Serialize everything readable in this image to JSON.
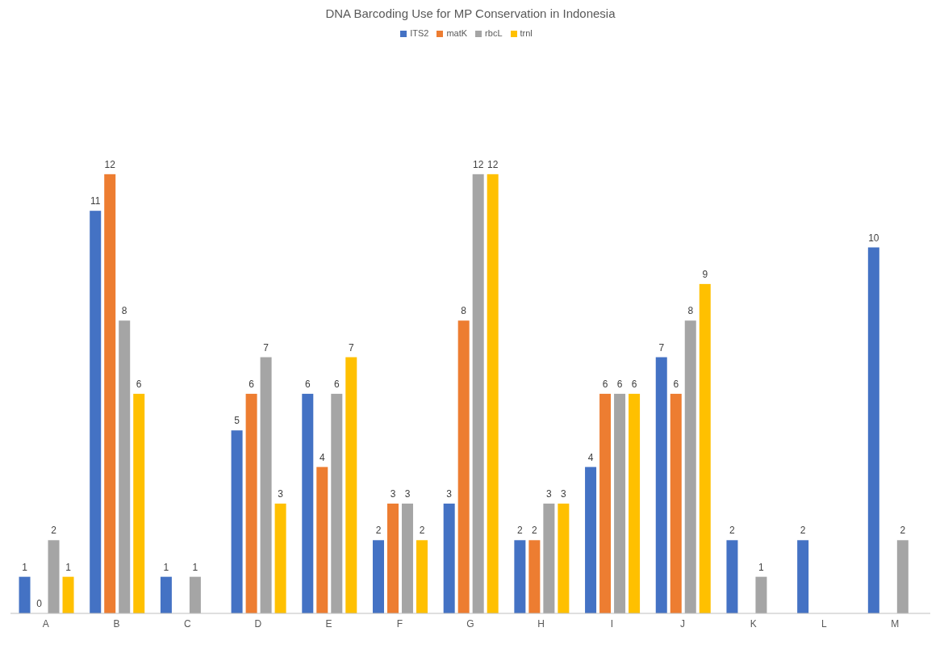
{
  "chart_data": {
    "type": "bar",
    "title": "DNA Barcoding Use for MP Conservation in Indonesia",
    "categories": [
      "A",
      "B",
      "C",
      "D",
      "E",
      "F",
      "G",
      "H",
      "I",
      "J",
      "K",
      "L",
      "M"
    ],
    "series": [
      {
        "name": "ITS2",
        "color": "#4472c4",
        "values": [
          1,
          11,
          1,
          5,
          6,
          2,
          3,
          2,
          4,
          7,
          2,
          2,
          10
        ]
      },
      {
        "name": "matK",
        "color": "#ed7d31",
        "values": [
          0,
          12,
          null,
          6,
          4,
          3,
          8,
          2,
          6,
          6,
          null,
          null,
          null
        ]
      },
      {
        "name": "rbcL",
        "color": "#a5a5a5",
        "values": [
          2,
          8,
          1,
          7,
          6,
          3,
          12,
          3,
          6,
          8,
          1,
          null,
          2
        ]
      },
      {
        "name": "trnl",
        "color": "#ffc000",
        "values": [
          1,
          6,
          null,
          3,
          7,
          2,
          12,
          3,
          6,
          9,
          null,
          null,
          null
        ]
      }
    ],
    "data_labels": true,
    "grid": false,
    "legend": "top"
  }
}
